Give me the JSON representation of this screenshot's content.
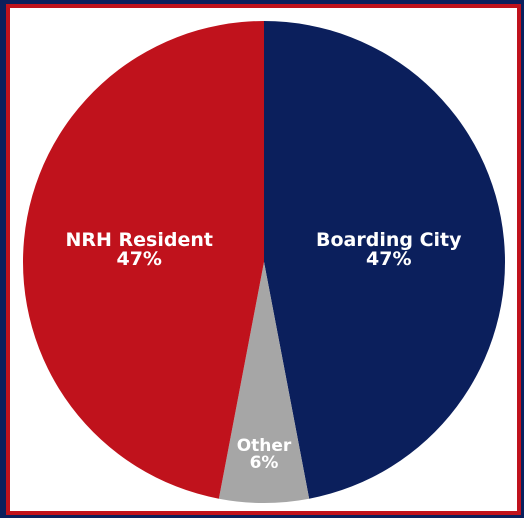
{
  "chart_data": {
    "type": "pie",
    "title": "",
    "slices": [
      {
        "label": "Boarding City",
        "value": 47,
        "value_label": "47%",
        "color": "#0b1f5c"
      },
      {
        "label": "Other",
        "value": 6,
        "value_label": "6%",
        "color": "#a6a6a6"
      },
      {
        "label": "NRH Resident",
        "value": 47,
        "value_label": "47%",
        "color": "#c0121c"
      }
    ],
    "start": "top",
    "direction": "clockwise",
    "legend": "none"
  },
  "colors": {
    "outer_background": "#0b1f5c",
    "border": "#c0121c",
    "plot_background": "#ffffff"
  }
}
